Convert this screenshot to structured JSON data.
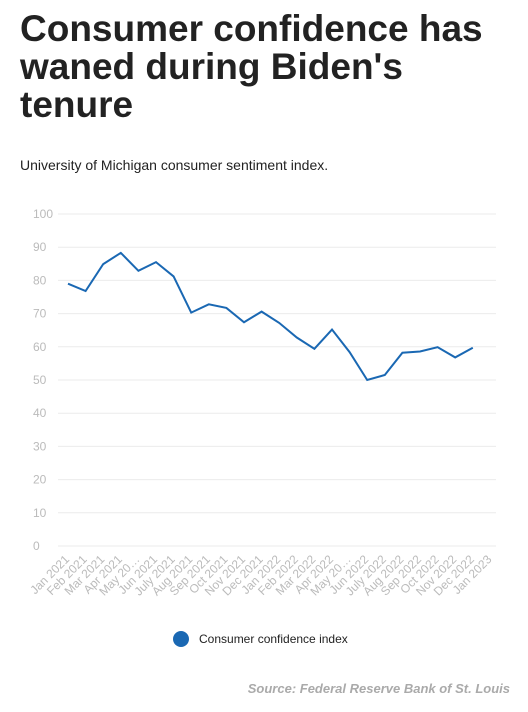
{
  "chart_data": {
    "type": "line",
    "title": "Consumer confidence has waned during Biden's tenure",
    "subtitle": "University of Michigan consumer sentiment index.",
    "source": "Source: Federal Reserve Bank of St. Louis",
    "categories": [
      "Jan 2021",
      "Feb 2021",
      "Mar 2021",
      "Apr 2021",
      "May 20…",
      "Jun 2021",
      "July 2021",
      "Aug 2021",
      "Sep 2021",
      "Oct 2021",
      "Nov 2021",
      "Dec 2021",
      "Jan 2022",
      "Feb 2022",
      "Mar 2022",
      "Apr 2022",
      "May 20…",
      "Jun 2022",
      "July 2022",
      "Aug 2022",
      "Sep 2022",
      "Oct 2022",
      "Nov 2022",
      "Dec 2022",
      "Jan 2023"
    ],
    "series": [
      {
        "name": "Consumer confidence index",
        "color": "#1a68b3",
        "values": [
          79,
          76.8,
          84.9,
          88.3,
          82.9,
          85.5,
          81.2,
          70.3,
          72.8,
          71.7,
          67.4,
          70.6,
          67.2,
          62.8,
          59.4,
          65.2,
          58.4,
          50,
          51.5,
          58.2,
          58.6,
          59.9,
          56.8,
          59.7,
          null
        ]
      }
    ],
    "ylim": [
      0,
      100
    ],
    "yticks": [
      0,
      10,
      20,
      30,
      40,
      50,
      60,
      70,
      80,
      90,
      100
    ],
    "grid": true,
    "legend": "bottom"
  }
}
